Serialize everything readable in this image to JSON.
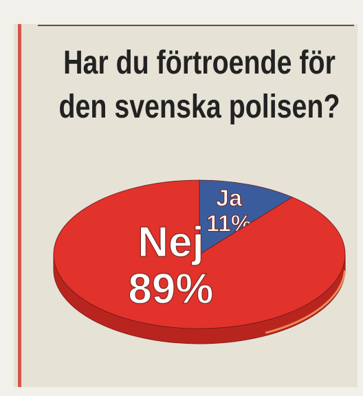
{
  "chart_data": {
    "type": "pie",
    "title": "Har du förtroende för den svenska polisen?",
    "categories": [
      "Ja",
      "Nej"
    ],
    "values": [
      11,
      89
    ],
    "value_labels": [
      "11%",
      "89%"
    ],
    "colors": [
      "#3b5c9c",
      "#e1322b"
    ]
  }
}
